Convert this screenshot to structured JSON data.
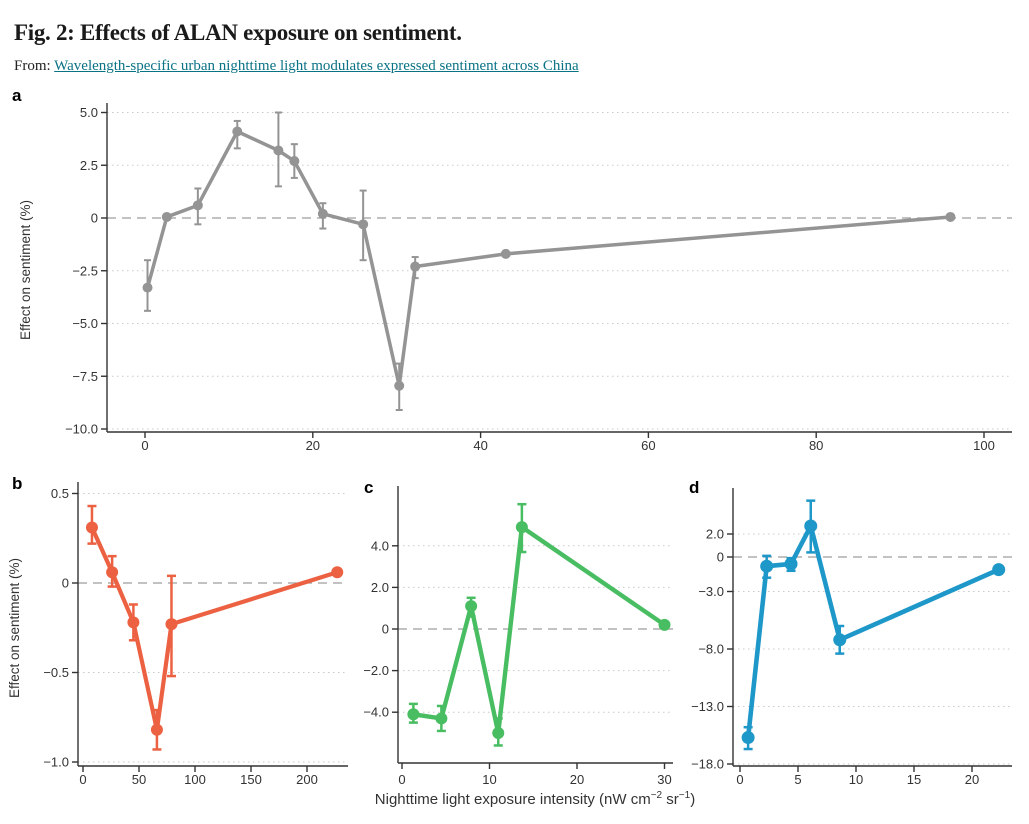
{
  "header": {
    "title": "Fig. 2: Effects of ALAN exposure on sentiment.",
    "from_label": "From:",
    "article_link": "Wavelength-specific urban nighttime light modulates expressed sentiment across China",
    "link_color": "#0a7285"
  },
  "shared": {
    "y_axis_label": "Effect on sentiment (%)",
    "x_axis_label_parts": {
      "p0": "Nighttime light exposure intensity (nW cm",
      "sup1": "−2",
      "p1": " sr",
      "sup2": "−1",
      "p2": ")"
    }
  },
  "chart_data": [
    {
      "panel": "a",
      "type": "line",
      "color": "#949494",
      "ylabel": "Effect on sentiment (%)",
      "xlim": [
        0,
        100
      ],
      "ylim": [
        -10.0,
        5.0
      ],
      "grid": "horizontal dotted, dashed zero line",
      "legend": "none",
      "xticks": [
        {
          "v": 0,
          "label": "0"
        },
        {
          "v": 20,
          "label": "20"
        },
        {
          "v": 40,
          "label": "40"
        },
        {
          "v": 60,
          "label": "60"
        },
        {
          "v": 80,
          "label": "80"
        },
        {
          "v": 100,
          "label": "100"
        }
      ],
      "yticks": [
        {
          "v": 5,
          "label": "5.0"
        },
        {
          "v": 2.5,
          "label": "2.5"
        },
        {
          "v": 0,
          "label": "0"
        },
        {
          "v": -2.5,
          "label": "−2.5"
        },
        {
          "v": -5,
          "label": "−5.0"
        },
        {
          "v": -7.5,
          "label": "−7.5"
        },
        {
          "v": -10,
          "label": "−10.0"
        }
      ],
      "points": [
        {
          "x": 0.3,
          "y": -3.3,
          "lo": -4.4,
          "hi": -2.0
        },
        {
          "x": 2.6,
          "y": 0.05,
          "lo": null,
          "hi": null
        },
        {
          "x": 6.3,
          "y": 0.6,
          "lo": -0.3,
          "hi": 1.4
        },
        {
          "x": 11,
          "y": 4.1,
          "lo": 3.3,
          "hi": 4.6
        },
        {
          "x": 15.9,
          "y": 3.2,
          "lo": 1.5,
          "hi": 5.0
        },
        {
          "x": 17.8,
          "y": 2.7,
          "lo": 1.9,
          "hi": 3.5
        },
        {
          "x": 21.2,
          "y": 0.2,
          "lo": -0.5,
          "hi": 0.7
        },
        {
          "x": 26,
          "y": -0.3,
          "lo": -2.0,
          "hi": 1.3
        },
        {
          "x": 30.3,
          "y": -7.95,
          "lo": -9.1,
          "hi": -6.9
        },
        {
          "x": 32.2,
          "y": -2.3,
          "lo": -2.85,
          "hi": -1.85
        },
        {
          "x": 43,
          "y": -1.7,
          "lo": null,
          "hi": null
        },
        {
          "x": 96,
          "y": 0.05,
          "lo": null,
          "hi": null
        }
      ]
    },
    {
      "panel": "b",
      "type": "line",
      "color": "#ec6142",
      "ylabel": "Effect on sentiment (%)",
      "xlim": [
        0,
        227
      ],
      "ylim": [
        -1.0,
        0.5
      ],
      "grid": "horizontal dotted, dashed zero line",
      "legend": "none",
      "xticks": [
        {
          "v": 0,
          "label": "0"
        },
        {
          "v": 50,
          "label": "50"
        },
        {
          "v": 100,
          "label": "100"
        },
        {
          "v": 150,
          "label": "150"
        },
        {
          "v": 200,
          "label": "200"
        }
      ],
      "yticks": [
        {
          "v": 0.5,
          "label": "0.5"
        },
        {
          "v": 0,
          "label": "0"
        },
        {
          "v": -0.5,
          "label": "−0.5"
        },
        {
          "v": -1.0,
          "label": "−1.0"
        }
      ],
      "points": [
        {
          "x": 8,
          "y": 0.31,
          "lo": 0.22,
          "hi": 0.43
        },
        {
          "x": 26,
          "y": 0.06,
          "lo": -0.02,
          "hi": 0.15
        },
        {
          "x": 45,
          "y": -0.22,
          "lo": -0.32,
          "hi": -0.12
        },
        {
          "x": 66,
          "y": -0.82,
          "lo": -0.93,
          "hi": -0.71
        },
        {
          "x": 79,
          "y": -0.23,
          "lo": -0.52,
          "hi": 0.04
        },
        {
          "x": 227,
          "y": 0.06,
          "lo": null,
          "hi": null
        }
      ]
    },
    {
      "panel": "c",
      "type": "line",
      "color": "#49bd62",
      "ylabel": "",
      "xlim": [
        0,
        30
      ],
      "ylim": [
        -5.6,
        6.0
      ],
      "grid": "horizontal dotted, dashed zero line",
      "legend": "none",
      "xticks": [
        {
          "v": 0,
          "label": "0"
        },
        {
          "v": 10,
          "label": "10"
        },
        {
          "v": 20,
          "label": "20"
        },
        {
          "v": 30,
          "label": "30"
        }
      ],
      "yticks": [
        {
          "v": 4,
          "label": "4.0"
        },
        {
          "v": 2,
          "label": "2.0"
        },
        {
          "v": 0,
          "label": "0"
        },
        {
          "v": -2,
          "label": "−2.0"
        },
        {
          "v": -4,
          "label": "−4.0"
        }
      ],
      "points": [
        {
          "x": 1.3,
          "y": -4.1,
          "lo": -4.5,
          "hi": -3.6
        },
        {
          "x": 4.5,
          "y": -4.3,
          "lo": -4.9,
          "hi": -3.7
        },
        {
          "x": 7.9,
          "y": 1.1,
          "lo": 0.6,
          "hi": 1.5
        },
        {
          "x": 11,
          "y": -5.0,
          "lo": -5.6,
          "hi": -4.3
        },
        {
          "x": 13.7,
          "y": 4.9,
          "lo": 3.7,
          "hi": 6.0
        },
        {
          "x": 30,
          "y": 0.2,
          "lo": null,
          "hi": null
        }
      ]
    },
    {
      "panel": "d",
      "type": "line",
      "color": "#1e97c9",
      "ylabel": "",
      "xlim": [
        0,
        22.3
      ],
      "ylim": [
        -18.0,
        4.9
      ],
      "grid": "horizontal dotted, dashed zero line",
      "legend": "none",
      "xticks": [
        {
          "v": 0,
          "label": "0"
        },
        {
          "v": 5,
          "label": "5"
        },
        {
          "v": 10,
          "label": "10"
        },
        {
          "v": 15,
          "label": "15"
        },
        {
          "v": 20,
          "label": "20"
        }
      ],
      "yticks": [
        {
          "v": 2,
          "label": "2.0"
        },
        {
          "v": 0,
          "label": "0"
        },
        {
          "v": -3,
          "label": "−3.0"
        },
        {
          "v": -8,
          "label": "−8.0"
        },
        {
          "v": -13,
          "label": "−13.0"
        },
        {
          "v": -18,
          "label": "−18.0"
        }
      ],
      "points": [
        {
          "x": 0.7,
          "y": -15.7,
          "lo": -16.7,
          "hi": -14.8
        },
        {
          "x": 2.3,
          "y": -0.8,
          "lo": -1.8,
          "hi": 0.1
        },
        {
          "x": 4.4,
          "y": -0.6,
          "lo": -1.2,
          "hi": -0.1
        },
        {
          "x": 6.1,
          "y": 2.7,
          "lo": 0.4,
          "hi": 4.9
        },
        {
          "x": 8.6,
          "y": -7.2,
          "lo": -8.4,
          "hi": -6.0
        },
        {
          "x": 22.3,
          "y": -1.1,
          "lo": null,
          "hi": null
        }
      ]
    }
  ]
}
